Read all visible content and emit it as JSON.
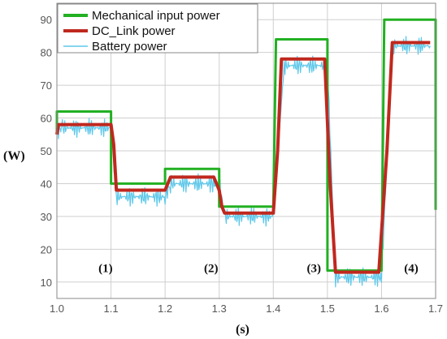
{
  "chart_data": {
    "type": "line",
    "xlabel": "(s)",
    "ylabel": "(W)",
    "xlim": [
      1.0,
      1.7
    ],
    "ylim": [
      5,
      95
    ],
    "x_ticks": [
      "1.0",
      "1.1",
      "1.2",
      "1.3",
      "1.4",
      "1.5",
      "1.6",
      "1.7"
    ],
    "y_ticks": [
      "10",
      "20",
      "30",
      "40",
      "50",
      "60",
      "70",
      "80",
      "90"
    ],
    "grid": true,
    "legend_position": "top-left",
    "annotations": [
      {
        "text": "(1)",
        "x": 1.09,
        "y": 13
      },
      {
        "text": "(2)",
        "x": 1.285,
        "y": 13
      },
      {
        "text": "(3)",
        "x": 1.475,
        "y": 13
      },
      {
        "text": "(4)",
        "x": 1.655,
        "y": 13
      }
    ],
    "series": [
      {
        "name": "Mechanical input power",
        "color": "#22b022",
        "x": [
          1.0,
          1.0,
          1.1,
          1.1,
          1.2,
          1.2,
          1.3,
          1.3,
          1.4,
          1.405,
          1.5,
          1.5,
          1.6,
          1.605,
          1.7,
          1.7
        ],
        "y": [
          56,
          62,
          62,
          40,
          40,
          44.5,
          44.5,
          33,
          33,
          84,
          84,
          13.5,
          13.5,
          90,
          90,
          32
        ]
      },
      {
        "name": "DC_Link power",
        "color": "#c0281e",
        "x": [
          1.0,
          1.003,
          1.1,
          1.105,
          1.11,
          1.2,
          1.21,
          1.29,
          1.3,
          1.305,
          1.31,
          1.4,
          1.408,
          1.415,
          1.495,
          1.505,
          1.515,
          1.595,
          1.61,
          1.62,
          1.69
        ],
        "y": [
          55,
          58,
          58,
          52,
          38,
          38,
          42,
          42,
          38,
          33,
          31,
          31,
          50,
          78,
          78,
          40,
          13,
          13,
          50,
          83,
          83
        ]
      },
      {
        "name": "Battery power",
        "color": "#5ec8ea",
        "x": [
          1.0,
          1.01,
          1.1,
          1.11,
          1.2,
          1.21,
          1.3,
          1.31,
          1.4,
          1.42,
          1.5,
          1.515,
          1.6,
          1.62,
          1.69
        ],
        "y": [
          56,
          57,
          57,
          36,
          36,
          40,
          40,
          30,
          30,
          76,
          76,
          11.5,
          11.5,
          82,
          82
        ],
        "ripple": 3
      }
    ]
  }
}
